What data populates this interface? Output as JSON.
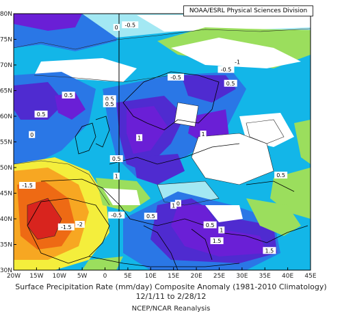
{
  "credit": "NOAA/ESRL Physical Sciences Division",
  "caption": {
    "title": "Surface Precipitation Rate (mm/day) Composite Anomaly (1981-2010 Climatology)",
    "dates": "12/1/11   to 2/28/12",
    "source": "NCEP/NCAR Reanalysis"
  },
  "axes": {
    "lat_ticks": [
      "80N",
      "75N",
      "70N",
      "65N",
      "60N",
      "55N",
      "50N",
      "45N",
      "40N",
      "35N",
      "30N"
    ],
    "lon_ticks": [
      "20W",
      "15W",
      "10W",
      "5W",
      "0",
      "5E",
      "10E",
      "15E",
      "20E",
      "25E",
      "30E",
      "35E",
      "40E",
      "45E"
    ],
    "lat_range": [
      30,
      80
    ],
    "lon_range": [
      -20,
      45
    ]
  },
  "contour_labels": [
    {
      "text": "-0.5",
      "lon": 5.5,
      "lat": 77.7
    },
    {
      "text": "-0.5",
      "lon": 26.5,
      "lat": 69.0
    },
    {
      "text": "-0.5",
      "lon": 15.5,
      "lat": 67.5
    },
    {
      "text": "-1",
      "lon": 29,
      "lat": 70.5
    },
    {
      "text": "0.5",
      "lon": 27.5,
      "lat": 66.3
    },
    {
      "text": "0.5",
      "lon": -8,
      "lat": 64.0
    },
    {
      "text": "0.5",
      "lon": -14,
      "lat": 60.3
    },
    {
      "text": "0.5",
      "lon": 1,
      "lat": 63.3
    },
    {
      "text": "0.5",
      "lon": 1,
      "lat": 62.3
    },
    {
      "text": "1",
      "lon": 7.5,
      "lat": 55.7
    },
    {
      "text": "1",
      "lon": 21.5,
      "lat": 56.4
    },
    {
      "text": "0.5",
      "lon": 2.5,
      "lat": 51.6
    },
    {
      "text": "0.5",
      "lon": 38.5,
      "lat": 48.4
    },
    {
      "text": "1",
      "lon": 2.5,
      "lat": 48.2
    },
    {
      "text": "-1.5",
      "lon": -17,
      "lat": 46.4
    },
    {
      "text": "-0.5",
      "lon": 2.5,
      "lat": 40.6
    },
    {
      "text": "-1.5",
      "lon": -8.5,
      "lat": 38.3
    },
    {
      "text": "-2",
      "lon": -5.5,
      "lat": 38.8
    },
    {
      "text": "1",
      "lon": 15,
      "lat": 42.5
    },
    {
      "text": "0.5",
      "lon": 10,
      "lat": 40.4
    },
    {
      "text": "0.5",
      "lon": 23,
      "lat": 38.7
    },
    {
      "text": "1",
      "lon": 25.5,
      "lat": 37.7
    },
    {
      "text": "1.5",
      "lon": 24.5,
      "lat": 35.6
    },
    {
      "text": "1.5",
      "lon": 36,
      "lat": 33.7
    },
    {
      "text": "0",
      "lon": -16,
      "lat": 56.3
    },
    {
      "text": "0",
      "lon": 2.5,
      "lat": 77.2
    },
    {
      "text": "0",
      "lon": 16,
      "lat": 42.9
    }
  ],
  "colors": {
    "purple": "#6a1fd6",
    "violet": "#4f2bd0",
    "blue": "#2a77e6",
    "cyan": "#13b6e8",
    "lightcyan": "#a3e8f3",
    "white": "#ffffff",
    "lightgreen": "#9bde5d",
    "yellow": "#f4ee3c",
    "orange": "#f7a722",
    "darkorange": "#ee6a14",
    "red": "#d8241e"
  }
}
